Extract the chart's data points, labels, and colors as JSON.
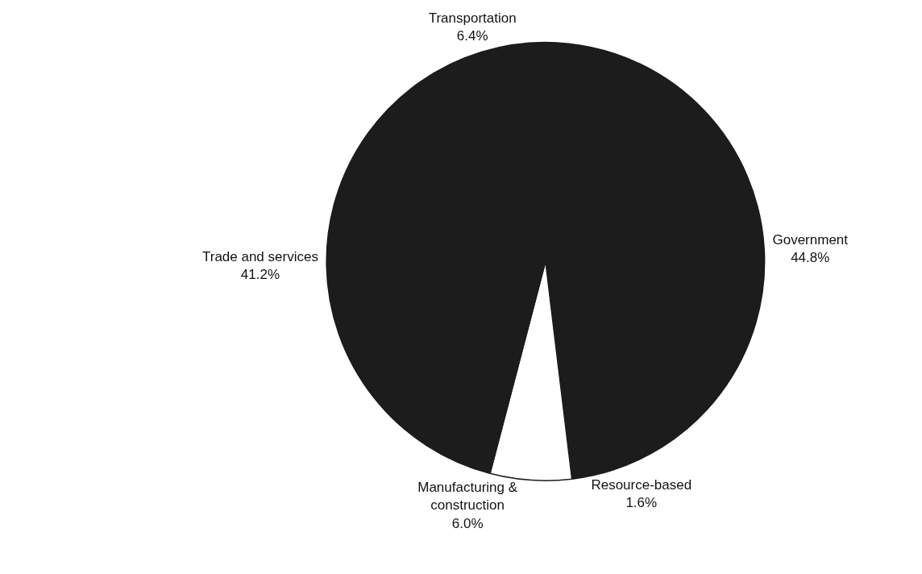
{
  "chart_data": {
    "type": "pie",
    "categories": [
      "Transportation",
      "Government",
      "Resource-based",
      "Manufacturing &\nconstruction",
      "Trade and services"
    ],
    "values": [
      6.4,
      44.8,
      1.6,
      6.0,
      41.2
    ],
    "colors": [
      "#1c1c1c",
      "#1c1c1c",
      "#1c1c1c",
      "#ffffff",
      "#1c1c1c"
    ],
    "value_labels": [
      "6.4%",
      "44.8%",
      "1.6%",
      "6.0%",
      "41.2%"
    ]
  }
}
